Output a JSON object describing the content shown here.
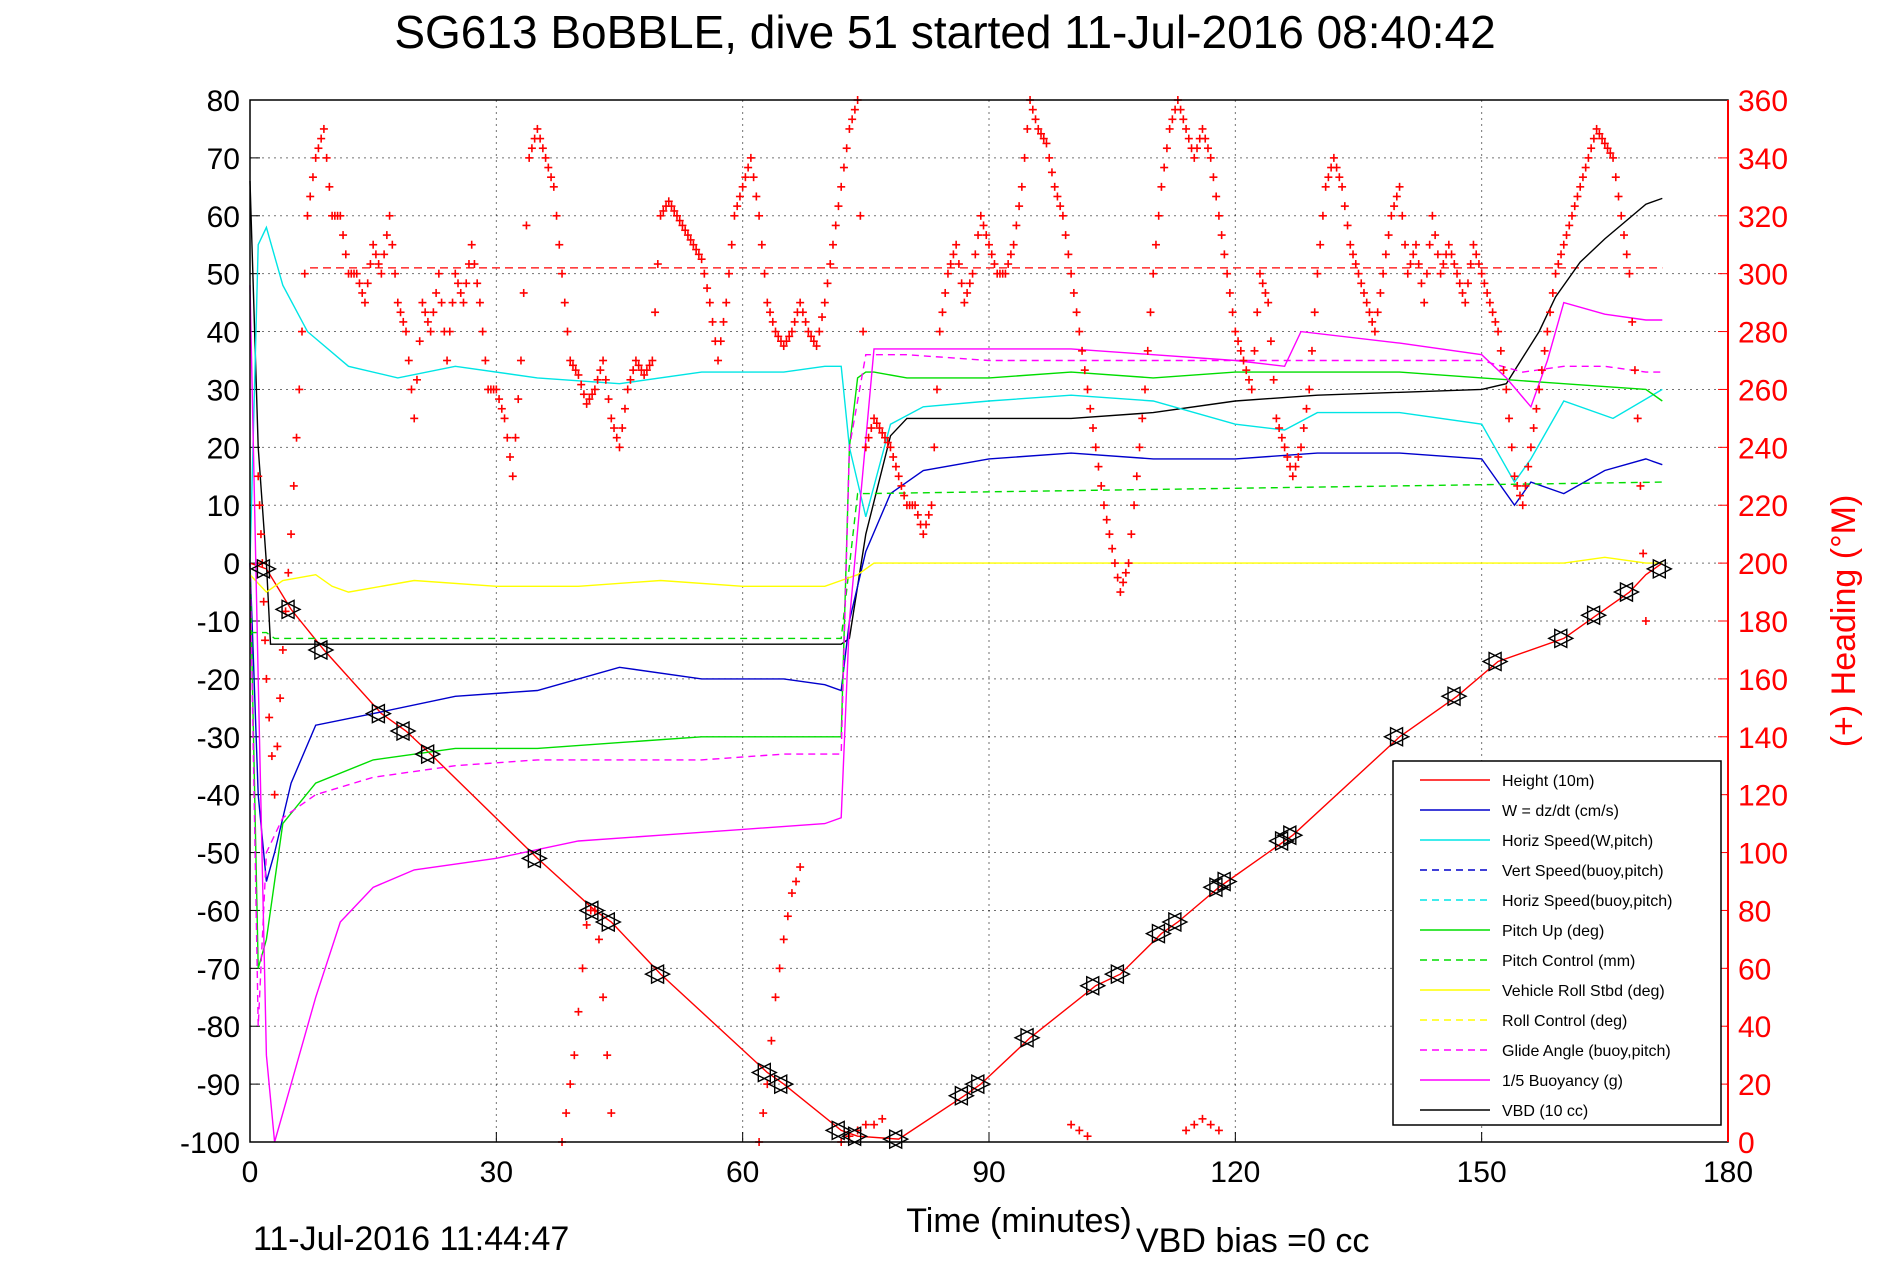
{
  "chart_data": {
    "type": "line",
    "title": "SG613 BoBBLE, dive 51 started 11-Jul-2016 08:40:42",
    "xlabel": "Time (minutes)",
    "ylabel_right": "(+) Heading (°M)",
    "xlim": [
      0,
      180
    ],
    "ylim": [
      -100,
      80
    ],
    "ylim_right": [
      0,
      360
    ],
    "x_ticks": [
      "0",
      "30",
      "60",
      "90",
      "120",
      "150",
      "180"
    ],
    "y_ticks": [
      "80",
      "70",
      "60",
      "50",
      "40",
      "30",
      "20",
      "10",
      "0",
      "-10",
      "-20",
      "-30",
      "-40",
      "-50",
      "-60",
      "-70",
      "-80",
      "-90",
      "-100"
    ],
    "y_ticks_right": [
      "360",
      "340",
      "320",
      "300",
      "280",
      "260",
      "240",
      "220",
      "200",
      "180",
      "160",
      "140",
      "120",
      "100",
      "80",
      "60",
      "40",
      "20",
      "0"
    ],
    "grid": true,
    "legend_position": "lower-right",
    "footer_left": "11-Jul-2016 11:44:47",
    "footer_right": "VBD bias =0 cc",
    "colors": {
      "height": "#ff0000",
      "w": "#0000cc",
      "horiz": "#00e5e5",
      "pitch": "#00dd00",
      "roll": "#ffff00",
      "glide": "#ff00ff",
      "vbd": "#000000",
      "heading": "#ff0000"
    },
    "legend": [
      {
        "label": "Height (10m)",
        "color": "#ff0000",
        "dash": false
      },
      {
        "label": "W = dz/dt (cm/s)",
        "color": "#0000cc",
        "dash": false
      },
      {
        "label": "Horiz Speed(W,pitch)",
        "color": "#00e5e5",
        "dash": false
      },
      {
        "label": "Vert Speed(buoy,pitch)",
        "color": "#0000cc",
        "dash": true
      },
      {
        "label": "Horiz Speed(buoy,pitch)",
        "color": "#00e5e5",
        "dash": true
      },
      {
        "label": "Pitch Up (deg)",
        "color": "#00dd00",
        "dash": false
      },
      {
        "label": "Pitch Control (mm)",
        "color": "#00dd00",
        "dash": true
      },
      {
        "label": "Vehicle Roll Stbd (deg)",
        "color": "#ffff00",
        "dash": false
      },
      {
        "label": "Roll Control (deg)",
        "color": "#ffff00",
        "dash": true
      },
      {
        "label": "Glide Angle (buoy,pitch)",
        "color": "#ff00ff",
        "dash": true
      },
      {
        "label": "1/5 Buoyancy (g)",
        "color": "#ff00ff",
        "dash": false
      },
      {
        "label": "VBD (10 cc)",
        "color": "#000000",
        "dash": false
      }
    ],
    "series": [
      {
        "name": "Height (10m)",
        "color": "#ff0000",
        "dash": false,
        "x": [
          0,
          2,
          5,
          9,
          16,
          19,
          22,
          35,
          42,
          44,
          50,
          63,
          65,
          72,
          74,
          79,
          87,
          89,
          95,
          103,
          106,
          111,
          113,
          118,
          119,
          126,
          127,
          140,
          147,
          152,
          160,
          162,
          164,
          168,
          170,
          172
        ],
        "y": [
          0,
          -1,
          -8,
          -15,
          -26,
          -29,
          -33,
          -51,
          -60,
          -62,
          -71,
          -88,
          -90,
          -98,
          -99,
          -99.5,
          -92,
          -90,
          -82,
          -73,
          -71,
          -64,
          -62,
          -56,
          -55,
          -48,
          -47,
          -30,
          -23,
          -17,
          -13,
          -11,
          -9,
          -5,
          -2,
          0
        ]
      },
      {
        "name": "VBD (10 cc)",
        "color": "#000000",
        "dash": false,
        "x": [
          0,
          1,
          2,
          2.5,
          4,
          72,
          73,
          75,
          78,
          80,
          90,
          100,
          110,
          120,
          130,
          150,
          153,
          157,
          159,
          162,
          165,
          170,
          172
        ],
        "y": [
          66,
          20,
          0,
          -14,
          -14,
          -14,
          -13,
          5,
          22,
          25,
          25,
          25,
          26,
          28,
          29,
          30,
          31,
          40,
          46,
          52,
          56,
          62,
          63
        ]
      },
      {
        "name": "W = dz/dt (cm/s)",
        "color": "#0000cc",
        "dash": false,
        "x": [
          0,
          1,
          2,
          3,
          5,
          8,
          15,
          25,
          35,
          45,
          55,
          65,
          70,
          72,
          73,
          75,
          78,
          82,
          90,
          100,
          110,
          120,
          130,
          140,
          150,
          154,
          156,
          160,
          165,
          170,
          172
        ],
        "y": [
          0,
          -40,
          -55,
          -50,
          -38,
          -28,
          -26,
          -23,
          -22,
          -18,
          -20,
          -20,
          -21,
          -22,
          -10,
          2,
          12,
          16,
          18,
          19,
          18,
          18,
          19,
          19,
          18,
          10,
          14,
          12,
          16,
          18,
          17
        ]
      },
      {
        "name": "Horiz Speed(W,pitch)",
        "color": "#00e5e5",
        "dash": false,
        "x": [
          0,
          1,
          2,
          4,
          7,
          12,
          18,
          25,
          35,
          45,
          55,
          65,
          70,
          72,
          73,
          75,
          78,
          82,
          90,
          100,
          110,
          120,
          126,
          130,
          140,
          150,
          154,
          156,
          160,
          166,
          172
        ],
        "y": [
          0,
          55,
          58,
          48,
          40,
          34,
          32,
          34,
          32,
          31,
          33,
          33,
          34,
          34,
          20,
          8,
          24,
          27,
          28,
          29,
          28,
          24,
          23,
          26,
          26,
          24,
          14,
          18,
          28,
          25,
          30
        ]
      },
      {
        "name": "Pitch Up (deg)",
        "color": "#00dd00",
        "dash": false,
        "x": [
          0,
          1,
          2,
          4,
          8,
          15,
          25,
          35,
          45,
          55,
          65,
          72,
          73,
          74,
          75,
          76,
          80,
          90,
          100,
          110,
          120,
          130,
          140,
          150,
          160,
          170,
          172
        ],
        "y": [
          0,
          -70,
          -65,
          -45,
          -38,
          -34,
          -32,
          -32,
          -31,
          -30,
          -30,
          -30,
          20,
          32,
          33,
          33,
          32,
          32,
          33,
          32,
          33,
          33,
          33,
          32,
          31,
          30,
          28
        ]
      },
      {
        "name": "Pitch Control (mm)",
        "color": "#00dd00",
        "dash": true,
        "x": [
          0,
          2,
          3,
          72,
          74,
          75,
          172
        ],
        "y": [
          -12,
          -12,
          -13,
          -13,
          12,
          12,
          14
        ]
      },
      {
        "name": "Vehicle Roll Stbd (deg)",
        "color": "#ffff00",
        "dash": false,
        "x": [
          0,
          2,
          4,
          8,
          10,
          12,
          20,
          30,
          40,
          50,
          60,
          70,
          72,
          74,
          76,
          80,
          90,
          100,
          110,
          120,
          130,
          140,
          150,
          155,
          160,
          165,
          170,
          172
        ],
        "y": [
          -2,
          -5,
          -3,
          -2,
          -4,
          -5,
          -3,
          -4,
          -4,
          -3,
          -4,
          -4,
          -3,
          -2,
          0,
          0,
          0,
          0,
          0,
          0,
          0,
          0,
          0,
          0,
          0,
          1,
          0,
          0
        ]
      },
      {
        "name": "Glide Angle (buoy,pitch)",
        "color": "#ff00ff",
        "dash": true,
        "x": [
          0,
          1,
          2,
          4,
          8,
          15,
          25,
          35,
          45,
          55,
          65,
          72,
          73,
          75,
          80,
          90,
          100,
          110,
          120,
          130,
          140,
          150,
          155,
          160,
          165,
          170,
          172
        ],
        "y": [
          0,
          -80,
          -50,
          -44,
          -40,
          -37,
          -35,
          -34,
          -34,
          -34,
          -33,
          -33,
          20,
          36,
          36,
          35,
          35,
          35,
          35,
          35,
          35,
          35,
          33,
          34,
          34,
          33,
          33
        ]
      },
      {
        "name": "1/5 Buoyancy (g)",
        "color": "#ff00ff",
        "dash": false,
        "x": [
          0,
          1,
          2,
          3,
          5,
          8,
          11,
          15,
          20,
          30,
          40,
          50,
          60,
          70,
          72,
          73,
          76,
          80,
          90,
          100,
          110,
          120,
          126,
          128,
          140,
          150,
          153,
          156,
          158,
          160,
          165,
          170,
          172
        ],
        "y": [
          48,
          -20,
          -85,
          -100,
          -90,
          -75,
          -62,
          -56,
          -53,
          -51,
          -48,
          -47,
          -46,
          -45,
          -44,
          -10,
          37,
          37,
          37,
          37,
          36,
          35,
          34,
          40,
          38,
          36,
          32,
          27,
          35,
          45,
          43,
          42,
          42
        ]
      }
    ],
    "heading_reference_deg": 302,
    "heading_series": {
      "name": "(+) Heading (°M)",
      "color": "#ff0000",
      "x": [
        1,
        1.5,
        2,
        3,
        4,
        5,
        6,
        7,
        8,
        9,
        10,
        11,
        12,
        13,
        14,
        15,
        16,
        17,
        18,
        19,
        20,
        21,
        22,
        23,
        24,
        25,
        26,
        27,
        28,
        29,
        30,
        31,
        32,
        33,
        34,
        35,
        36,
        37,
        38,
        39,
        40,
        41,
        42,
        43,
        44,
        45,
        46,
        47,
        48,
        49,
        50,
        51,
        52,
        53,
        54,
        55,
        56,
        57,
        58,
        59,
        60,
        61,
        62,
        63,
        64,
        65,
        66,
        67,
        68,
        69,
        70,
        71,
        72,
        73,
        74,
        75,
        76,
        77,
        78,
        79,
        80,
        81,
        82,
        83,
        84,
        85,
        86,
        87,
        88,
        89,
        90,
        91,
        92,
        93,
        94,
        95,
        96,
        97,
        98,
        99,
        100,
        101,
        102,
        103,
        104,
        105,
        106,
        107,
        108,
        109,
        110,
        111,
        112,
        113,
        114,
        115,
        116,
        117,
        118,
        119,
        120,
        121,
        122,
        123,
        124,
        125,
        126,
        127,
        128,
        129,
        130,
        131,
        132,
        133,
        134,
        135,
        136,
        137,
        138,
        139,
        140,
        141,
        142,
        143,
        144,
        145,
        146,
        147,
        148,
        149,
        150,
        151,
        152,
        153,
        154,
        155,
        156,
        157,
        158,
        159,
        160,
        161,
        162,
        163,
        164,
        165,
        166,
        167,
        168,
        169,
        170
      ],
      "y": [
        230,
        200,
        160,
        120,
        170,
        210,
        260,
        320,
        340,
        350,
        320,
        320,
        300,
        300,
        290,
        310,
        300,
        320,
        290,
        280,
        250,
        290,
        280,
        300,
        270,
        300,
        290,
        310,
        290,
        260,
        260,
        250,
        230,
        270,
        340,
        350,
        340,
        330,
        300,
        270,
        265,
        255,
        260,
        270,
        250,
        240,
        260,
        270,
        265,
        270,
        320,
        325,
        320,
        315,
        310,
        305,
        290,
        270,
        290,
        320,
        330,
        340,
        320,
        290,
        280,
        275,
        280,
        290,
        280,
        275,
        290,
        310,
        330,
        350,
        360,
        240,
        250,
        245,
        240,
        230,
        220,
        220,
        210,
        220,
        280,
        300,
        310,
        290,
        300,
        320,
        310,
        300,
        300,
        310,
        330,
        360,
        350,
        345,
        330,
        320,
        300,
        280,
        260,
        240,
        220,
        205,
        190,
        200,
        230,
        260,
        300,
        330,
        350,
        360,
        350,
        340,
        350,
        340,
        320,
        300,
        280,
        270,
        260,
        300,
        290,
        250,
        240,
        230,
        240,
        260,
        300,
        330,
        340,
        330,
        310,
        300,
        290,
        280,
        300,
        320,
        330,
        300,
        310,
        290,
        320,
        300,
        310,
        300,
        290,
        310,
        300,
        290,
        280,
        260,
        230,
        220,
        240,
        260,
        280,
        300,
        310,
        320,
        330,
        340,
        350,
        345,
        340,
        320,
        300,
        250,
        180
      ]
    },
    "heading_low_band": {
      "x": [
        38,
        38.5,
        39,
        39.5,
        40,
        40.5,
        41,
        41.5,
        42,
        42.5,
        43,
        43.5,
        44,
        62,
        62.5,
        63,
        63.5,
        64,
        64.5,
        65,
        65.5,
        66,
        66.5,
        67,
        72,
        73,
        74,
        75,
        76,
        77,
        100,
        101,
        102,
        114,
        115,
        116,
        117,
        118
      ],
      "y": [
        0,
        10,
        20,
        30,
        45,
        60,
        75,
        80,
        80,
        70,
        50,
        30,
        10,
        0,
        10,
        20,
        35,
        50,
        60,
        70,
        78,
        86,
        90,
        95,
        0,
        2,
        4,
        6,
        6,
        8,
        6,
        4,
        2,
        4,
        6,
        8,
        6,
        4
      ]
    },
    "markers": {
      "x": [
        2,
        5,
        9,
        16,
        19,
        22,
        35,
        42,
        44,
        50,
        63,
        65,
        72,
        74,
        79,
        87,
        89,
        95,
        103,
        106,
        111,
        113,
        118,
        119,
        126,
        127,
        140,
        147,
        152,
        160,
        164,
        168,
        172
      ],
      "y": [
        -1,
        -8,
        -15,
        -26,
        -29,
        -33,
        -51,
        -60,
        -62,
        -71,
        -88,
        -90,
        -98,
        -99,
        -99.5,
        -92,
        -90,
        -82,
        -73,
        -71,
        -64,
        -62,
        -56,
        -55,
        -48,
        -47,
        -30,
        -23,
        -17,
        -13,
        -9,
        -5,
        -1
      ]
    }
  }
}
